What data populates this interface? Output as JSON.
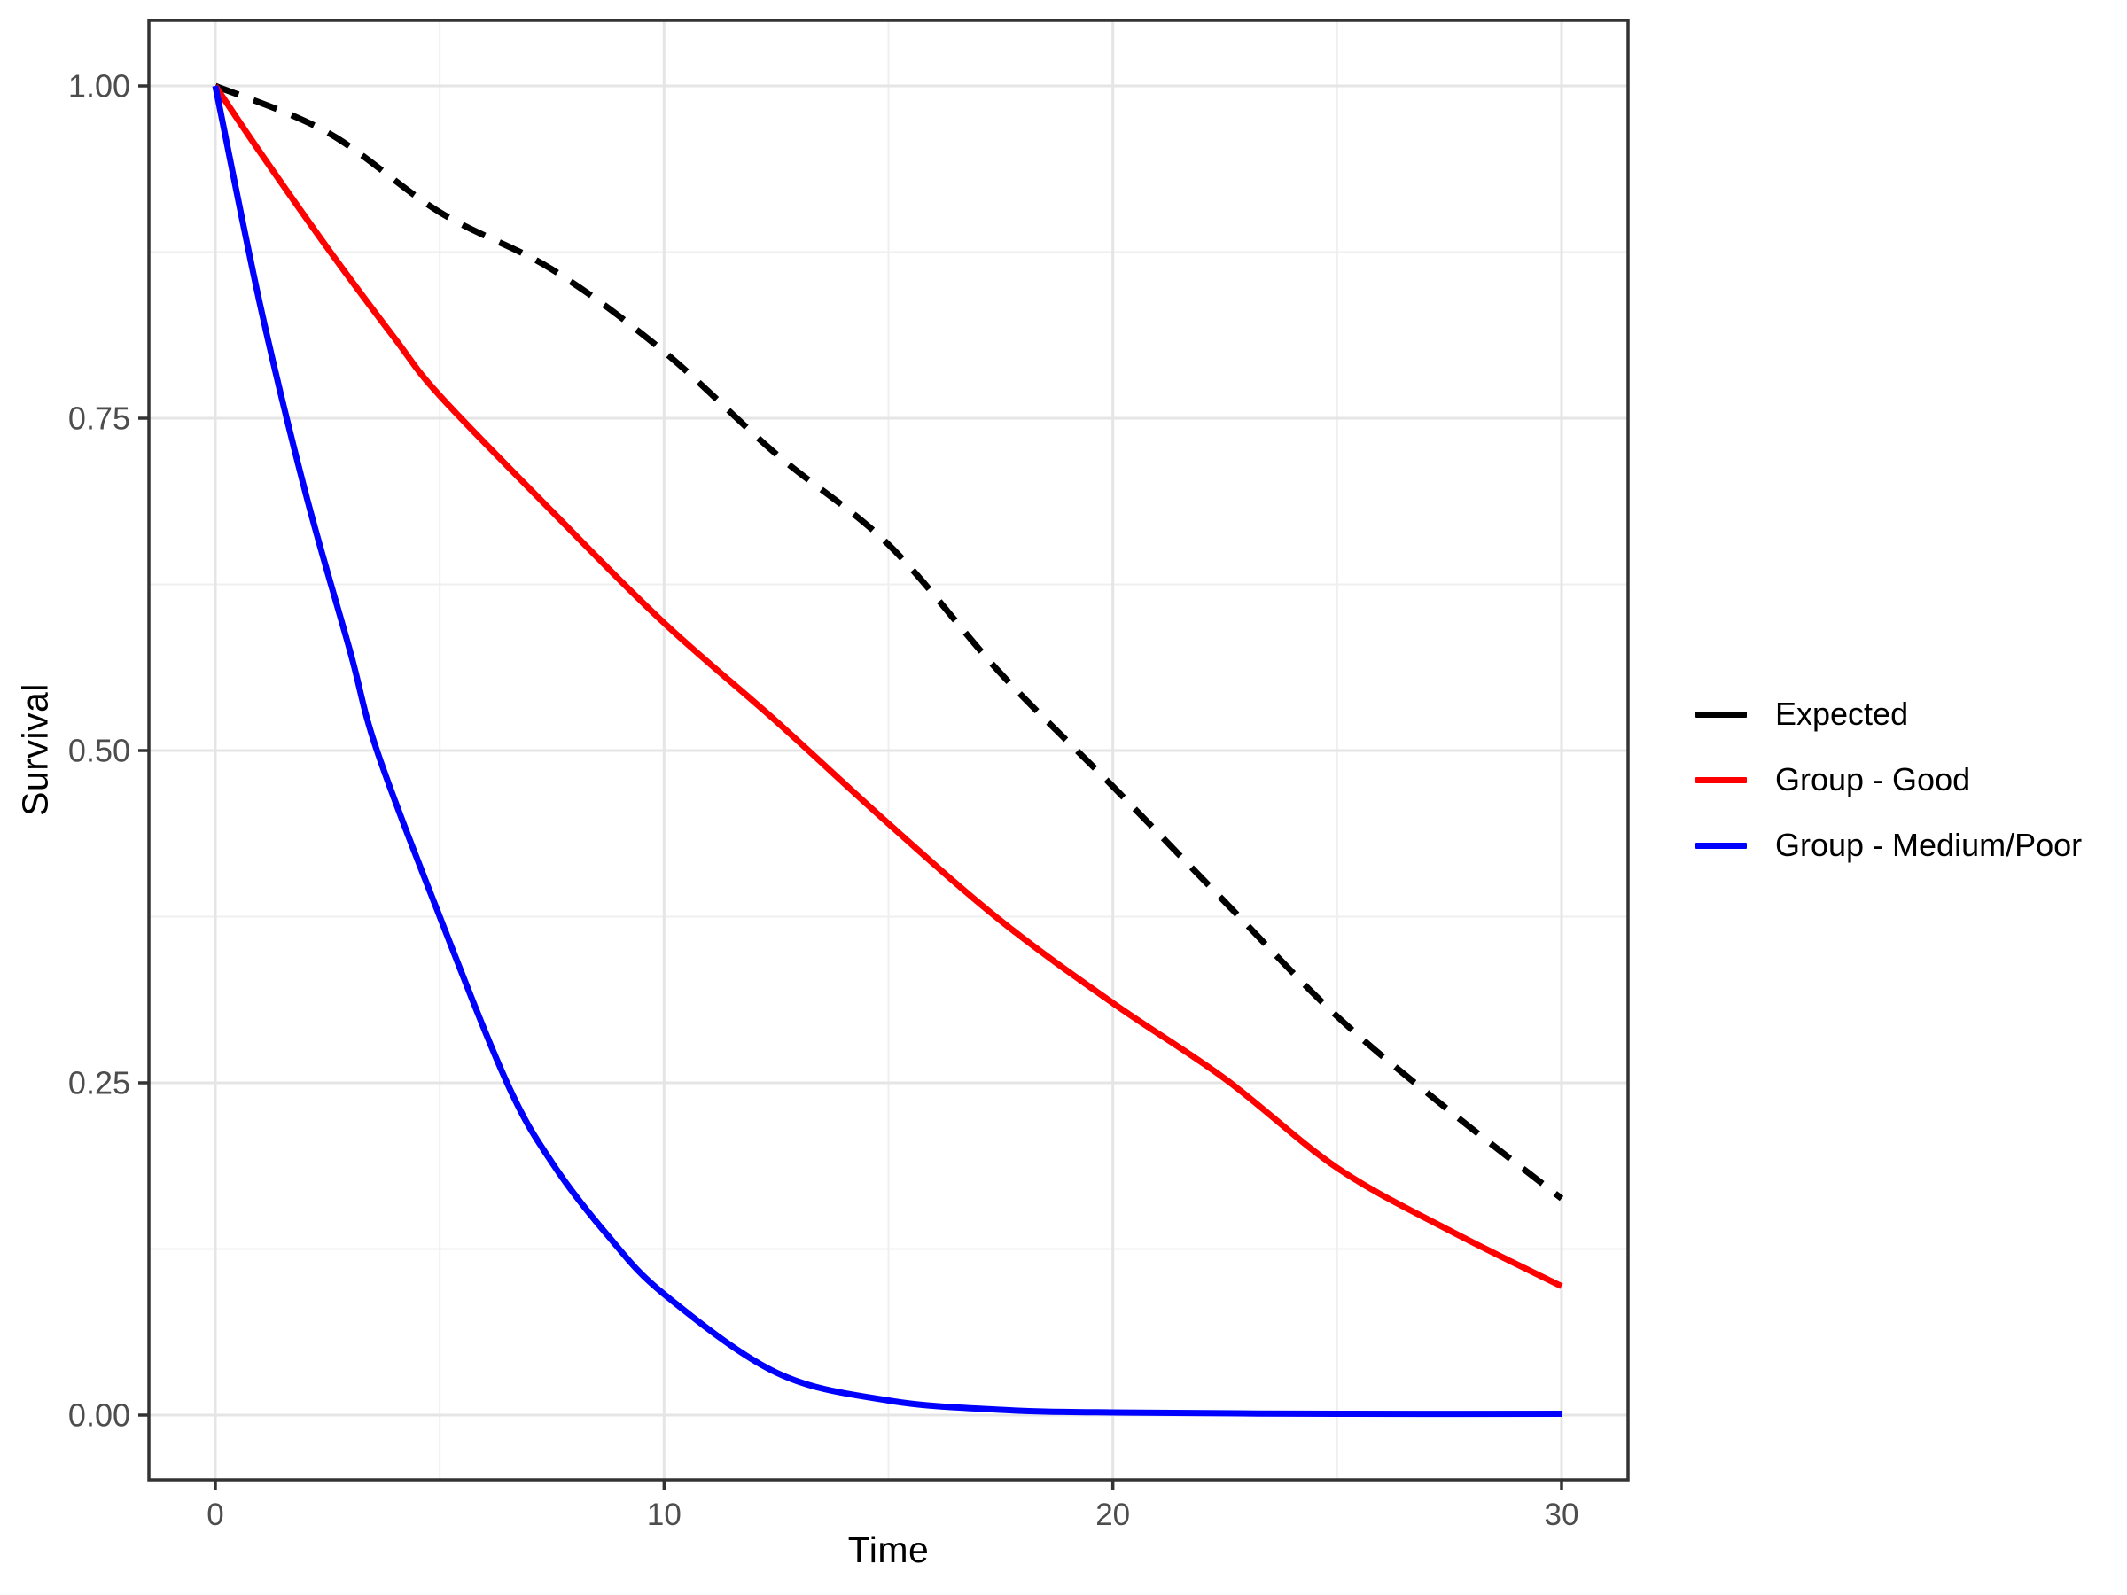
{
  "figure": {
    "kind": "survival-curves-plot",
    "background": "#FFFFFF"
  },
  "x_axis": {
    "title": "Time",
    "range": [
      0,
      30
    ],
    "tick_values": [
      0,
      10,
      20,
      30
    ],
    "tick_labels": [
      "0",
      "10",
      "20",
      "30"
    ],
    "minor_tick_values": [
      5,
      15,
      25
    ]
  },
  "y_axis": {
    "title": "Survival",
    "range": [
      0,
      1
    ],
    "tick_values": [
      0,
      0.25,
      0.5,
      0.75,
      1.0
    ],
    "tick_labels": [
      "0.00",
      "0.25",
      "0.50",
      "0.75",
      "1.00"
    ],
    "minor_tick_values": [
      0.125,
      0.375,
      0.625,
      0.875
    ]
  },
  "legend": {
    "position": "right",
    "items": [
      {
        "label": "Expected",
        "color": "#000000",
        "key_style": "solid"
      },
      {
        "label": "Group - Good",
        "color": "#FF0000",
        "key_style": "solid"
      },
      {
        "label": "Group - Medium/Poor",
        "color": "#0000FF",
        "key_style": "solid"
      }
    ]
  },
  "styles": {
    "grid_major_color": "#E5E5E5",
    "grid_minor_color": "#EFEFEF",
    "panel_border_color": "#333333",
    "tick_mark_color": "#333333",
    "tick_label_color": "#4D4D4D",
    "axis_title_color": "#000000",
    "curve_stroke_width": 7,
    "dash_pattern": "28 18"
  },
  "chart_data": {
    "type": "line",
    "title": "",
    "xlabel": "Time",
    "ylabel": "Survival",
    "xlim": [
      0,
      30
    ],
    "ylim": [
      0,
      1
    ],
    "grid": true,
    "legend_position": "right",
    "series": [
      {
        "name": "Expected",
        "color": "#000000",
        "linetype": "dashed",
        "points": [
          [
            0,
            1.0
          ],
          [
            2.5,
            0.965
          ],
          [
            5,
            0.905
          ],
          [
            7.5,
            0.862
          ],
          [
            10,
            0.8
          ],
          [
            12.5,
            0.723
          ],
          [
            15,
            0.655
          ],
          [
            17.5,
            0.558
          ],
          [
            20,
            0.473
          ],
          [
            22.5,
            0.386
          ],
          [
            25,
            0.3
          ],
          [
            27.5,
            0.229
          ],
          [
            30,
            0.163
          ]
        ]
      },
      {
        "name": "Group - Good",
        "color": "#FF0000",
        "linetype": "solid",
        "points": [
          [
            0,
            1.0
          ],
          [
            1,
            0.95
          ],
          [
            2.5,
            0.878
          ],
          [
            4,
            0.81
          ],
          [
            5,
            0.767
          ],
          [
            7.5,
            0.68
          ],
          [
            10,
            0.596
          ],
          [
            12.5,
            0.522
          ],
          [
            15,
            0.445
          ],
          [
            17.5,
            0.372
          ],
          [
            20,
            0.31
          ],
          [
            22.5,
            0.253
          ],
          [
            25,
            0.186
          ],
          [
            27.5,
            0.139
          ],
          [
            30,
            0.097
          ]
        ]
      },
      {
        "name": "Group - Medium/Poor",
        "color": "#0000FF",
        "linetype": "solid",
        "points": [
          [
            0,
            1.0
          ],
          [
            1,
            0.835
          ],
          [
            2,
            0.695
          ],
          [
            3,
            0.575
          ],
          [
            3.6,
            0.5
          ],
          [
            5,
            0.375
          ],
          [
            6.5,
            0.25
          ],
          [
            7.5,
            0.19
          ],
          [
            8.75,
            0.135
          ],
          [
            10,
            0.091
          ],
          [
            12.5,
            0.032
          ],
          [
            15,
            0.011
          ],
          [
            17.5,
            0.004
          ],
          [
            20,
            0.002
          ],
          [
            25,
            0.001
          ],
          [
            30,
            0.001
          ]
        ]
      }
    ]
  }
}
